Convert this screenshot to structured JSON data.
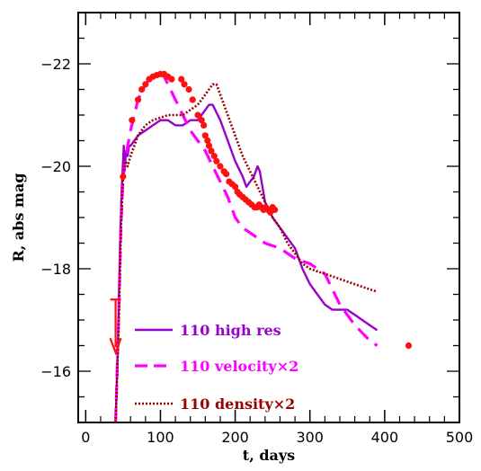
{
  "chart_data": {
    "type": "line",
    "xlabel": "t, days",
    "ylabel": "R, abs mag",
    "xlim": [
      -10,
      500
    ],
    "ylim": [
      -15,
      -23
    ],
    "y_inverted": true,
    "xticks": [
      0,
      100,
      200,
      300,
      400,
      500
    ],
    "yticks": [
      -16,
      -18,
      -20,
      -22
    ],
    "series": [
      {
        "name": "110 high res",
        "color": "#9900cc",
        "style": "solid",
        "x": [
          40,
          43,
          46,
          48,
          50,
          51,
          52,
          54,
          56,
          58,
          60,
          65,
          70,
          80,
          90,
          100,
          110,
          120,
          130,
          140,
          150,
          155,
          160,
          165,
          170,
          180,
          190,
          200,
          210,
          215,
          220,
          225,
          230,
          233,
          240,
          250,
          260,
          270,
          280,
          290,
          300,
          310,
          320,
          330,
          340,
          350,
          360,
          370,
          380,
          390
        ],
        "y": [
          -15.0,
          -16.5,
          -18.5,
          -19.5,
          -20.1,
          -20.4,
          -19.9,
          -20.3,
          -20.2,
          -20.4,
          -20.4,
          -20.5,
          -20.6,
          -20.7,
          -20.8,
          -20.9,
          -20.9,
          -20.8,
          -20.8,
          -20.9,
          -20.9,
          -21.0,
          -21.1,
          -21.2,
          -21.2,
          -20.9,
          -20.5,
          -20.1,
          -19.8,
          -19.6,
          -19.7,
          -19.8,
          -20.0,
          -19.9,
          -19.3,
          -19.0,
          -18.8,
          -18.6,
          -18.4,
          -18.0,
          -17.7,
          -17.5,
          -17.3,
          -17.2,
          -17.2,
          -17.2,
          -17.1,
          -17.0,
          -16.9,
          -16.8
        ]
      },
      {
        "name": "110 velocity×2",
        "color": "#ff00ff",
        "style": "dashed",
        "x": [
          40,
          44,
          47,
          50,
          55,
          60,
          65,
          70,
          80,
          90,
          100,
          105,
          110,
          120,
          130,
          140,
          150,
          160,
          170,
          180,
          190,
          200,
          210,
          220,
          230,
          240,
          250,
          260,
          270,
          280,
          290,
          300,
          310,
          320,
          330,
          340,
          350,
          360,
          370,
          380,
          390
        ],
        "y": [
          -15.0,
          -17.0,
          -18.8,
          -19.8,
          -20.3,
          -20.7,
          -21.0,
          -21.3,
          -21.6,
          -21.8,
          -21.8,
          -21.75,
          -21.6,
          -21.3,
          -21.0,
          -20.7,
          -20.5,
          -20.3,
          -20.0,
          -19.7,
          -19.4,
          -19.0,
          -18.8,
          -18.7,
          -18.6,
          -18.5,
          -18.45,
          -18.4,
          -18.3,
          -18.2,
          -18.15,
          -18.1,
          -18.0,
          -17.9,
          -17.6,
          -17.3,
          -17.1,
          -16.9,
          -16.75,
          -16.6,
          -16.5
        ]
      },
      {
        "name": "110 density×2",
        "color": "#990000",
        "style": "dotted",
        "x": [
          40,
          44,
          47,
          50,
          53,
          56,
          60,
          65,
          70,
          80,
          90,
          100,
          110,
          120,
          130,
          140,
          150,
          160,
          165,
          170,
          175,
          180,
          190,
          200,
          210,
          220,
          230,
          240,
          250,
          260,
          270,
          280,
          290,
          300,
          310,
          320,
          330,
          340,
          350,
          360,
          370,
          380,
          390
        ],
        "y": [
          -15.0,
          -16.8,
          -18.7,
          -19.8,
          -20.1,
          -20.0,
          -20.2,
          -20.4,
          -20.6,
          -20.8,
          -20.9,
          -20.95,
          -21.0,
          -21.0,
          -21.0,
          -21.1,
          -21.2,
          -21.4,
          -21.5,
          -21.6,
          -21.6,
          -21.4,
          -21.0,
          -20.6,
          -20.2,
          -19.9,
          -19.6,
          -19.3,
          -19.0,
          -18.8,
          -18.5,
          -18.3,
          -18.1,
          -18.0,
          -17.95,
          -17.9,
          -17.85,
          -17.8,
          -17.75,
          -17.7,
          -17.65,
          -17.6,
          -17.55
        ]
      }
    ],
    "observations": {
      "color": "#ff1010",
      "x": [
        50,
        62,
        70,
        75,
        80,
        85,
        90,
        95,
        100,
        105,
        110,
        115,
        128,
        132,
        138,
        143,
        150,
        155,
        158,
        160,
        163,
        165,
        168,
        172,
        175,
        180,
        185,
        188,
        192,
        196,
        200,
        203,
        206,
        210,
        214,
        218,
        222,
        226,
        229,
        232,
        235,
        238,
        241,
        244,
        247,
        250,
        253,
        432
      ],
      "y": [
        -19.8,
        -20.9,
        -21.3,
        -21.5,
        -21.6,
        -21.7,
        -21.75,
        -21.78,
        -21.8,
        -21.8,
        -21.75,
        -21.7,
        -21.7,
        -21.6,
        -21.5,
        -21.3,
        -21.0,
        -20.9,
        -20.8,
        -20.6,
        -20.5,
        -20.4,
        -20.3,
        -20.2,
        -20.1,
        -20.0,
        -19.9,
        -19.85,
        -19.7,
        -19.65,
        -19.6,
        -19.5,
        -19.45,
        -19.4,
        -19.35,
        -19.3,
        -19.25,
        -19.2,
        -19.2,
        -19.25,
        -19.2,
        -19.15,
        -19.2,
        -19.15,
        -19.1,
        -19.2,
        -19.15,
        -16.5
      ]
    },
    "arrow": {
      "x": 40,
      "y_from": -17.4,
      "y_to": -16.4,
      "color": "#ff1010"
    }
  }
}
